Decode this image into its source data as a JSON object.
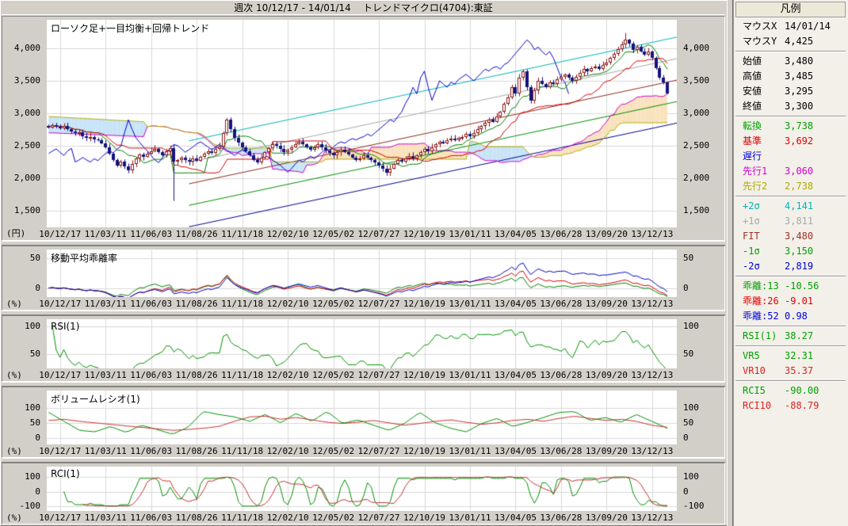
{
  "header": {
    "title": "週次 10/12/17 - 14/01/14    トレンドマイクロ(4704):東証"
  },
  "colors": {
    "grid": "#d8d8d8",
    "candle_up": "#8b1818",
    "candle_down": "#14147e",
    "tenkan": "#008000",
    "kijun": "#d40000",
    "chikou": "#0000cc",
    "senkou1": "#cc00cc",
    "senkou2": "#b2ae00",
    "cloud_bull": "#f9e2bd",
    "cloud_bear": "#c8e4f8",
    "sigma2p": "#00b4b4",
    "sigma1p": "#a8a8a8",
    "fit": "#8f2a20",
    "sigma1m": "#009000",
    "sigma2m": "#000090",
    "dev13": "#008000",
    "dev26": "#d40000",
    "dev52": "#0000cc",
    "rsi": "#009000",
    "vr5": "#009000",
    "vr10": "#c43030",
    "rci5": "#009000",
    "rci10": "#c43030",
    "legend_header_bg": "#ece9d8",
    "chrome": "#d4d0c8"
  },
  "x_axis": {
    "candles": 164,
    "total_weeks": 166,
    "tick_weeks": [
      3,
      15,
      27,
      39,
      51,
      63,
      75,
      87,
      99,
      111,
      123,
      135,
      147,
      159
    ],
    "labels": [
      "10/12/17",
      "11/03/11",
      "11/06/03",
      "11/08/26",
      "11/11/18",
      "12/02/10",
      "12/05/02",
      "12/07/27",
      "12/10/19",
      "13/01/11",
      "13/04/05",
      "13/06/28",
      "13/09/20",
      "13/12/13"
    ]
  },
  "chart_data": [
    {
      "type": "candlestick",
      "panel": "main",
      "title": "ローソク足+一目均衡+回帰トレンド",
      "unit": "(円)",
      "y_ticks": [
        4000,
        3500,
        3000,
        2500,
        2000,
        1500
      ],
      "ylim": [
        1243,
        4440
      ],
      "close": [
        2780,
        2820,
        2790,
        2770,
        2800,
        2760,
        2720,
        2690,
        2710,
        2650,
        2620,
        2640,
        2600,
        2580,
        2540,
        2480,
        2380,
        2280,
        2200,
        2250,
        2180,
        2120,
        2220,
        2300,
        2360,
        2330,
        2380,
        2420,
        2450,
        2400,
        2350,
        2420,
        2460,
        2250,
        2280,
        2320,
        2280,
        2250,
        2300,
        2270,
        2330,
        2380,
        2420,
        2390,
        2450,
        2490,
        2700,
        2900,
        2750,
        2620,
        2550,
        2480,
        2420,
        2350,
        2280,
        2240,
        2320,
        2400,
        2460,
        2520,
        2500,
        2450,
        2400,
        2440,
        2480,
        2530,
        2560,
        2520,
        2480,
        2440,
        2480,
        2520,
        2470,
        2430,
        2390,
        2350,
        2400,
        2440,
        2400,
        2360,
        2320,
        2280,
        2310,
        2350,
        2320,
        2280,
        2240,
        2200,
        2150,
        2090,
        2150,
        2220,
        2280,
        2250,
        2300,
        2340,
        2300,
        2350,
        2400,
        2450,
        2420,
        2480,
        2530,
        2560,
        2540,
        2580,
        2610,
        2590,
        2620,
        2640,
        2680,
        2650,
        2700,
        2750,
        2800,
        2850,
        2900,
        2870,
        2950,
        3020,
        3150,
        3250,
        3400,
        3300,
        3550,
        3650,
        3400,
        3200,
        3350,
        3500,
        3450,
        3400,
        3480,
        3450,
        3520,
        3560,
        3600,
        3550,
        3500,
        3560,
        3620,
        3680,
        3650,
        3700,
        3720,
        3680,
        3750,
        3780,
        3850,
        3920,
        3990,
        4060,
        4130,
        4080,
        3980,
        4020,
        3950,
        3900,
        3950,
        3850,
        3700,
        3550,
        3480,
        3300
      ],
      "high_overrides": {
        "152": 4235,
        "163": 3485
      },
      "low_overrides": {
        "33": 1650,
        "163": 3295
      },
      "last_week_ohlc": {
        "open": 3480,
        "high": 3485,
        "low": 3295,
        "close": 3300
      },
      "senkou_prefix": {
        "spanA": [
          2700,
          2640
        ],
        "spanB": [
          2950,
          2870
        ]
      },
      "ichimoku_windows": {
        "tenkan": 9,
        "kijun": 26,
        "senkou_b": 52,
        "shift": 26
      },
      "regression": {
        "w0": 37,
        "v0": 1914,
        "w1": 163,
        "v1": 3480,
        "sigma": 331,
        "levels": [
          {
            "mult": 2,
            "color": "sigma2p"
          },
          {
            "mult": 1,
            "color": "sigma1p"
          },
          {
            "mult": 0,
            "color": "fit"
          },
          {
            "mult": -1,
            "color": "sigma1m"
          },
          {
            "mult": -2,
            "color": "sigma2m"
          }
        ]
      }
    },
    {
      "type": "line",
      "panel": "deviation",
      "title": "移動平均乖離率",
      "unit": "(%)",
      "y_ticks": [
        50,
        0
      ],
      "ylim": [
        -15,
        64
      ],
      "windows": [
        13,
        26,
        52
      ],
      "series_colors": [
        "dev13",
        "dev26",
        "dev52"
      ],
      "end_values": [
        -10.56,
        -9.01,
        0.98
      ]
    },
    {
      "type": "line",
      "panel": "rsi",
      "title": "RSI(1)",
      "unit": "(%)",
      "y_ticks": [
        100,
        50
      ],
      "ylim": [
        25,
        112
      ],
      "window": 13,
      "color_key": "rsi",
      "end_value": 38.27
    },
    {
      "type": "line",
      "panel": "volume_ratio",
      "title": "ボリュームレシオ(1)",
      "unit": "(%)",
      "y_ticks": [
        100,
        50,
        0
      ],
      "ylim": [
        -22,
        158
      ],
      "series": [
        {
          "name": "VR5",
          "color_key": "vr5",
          "end_value": 32.31,
          "values": [
            85,
            55,
            25,
            20,
            38,
            18,
            42,
            28,
            12,
            35,
            88,
            78,
            70,
            55,
            78,
            50,
            82,
            55,
            88,
            48,
            60,
            42,
            25,
            48,
            85,
            50,
            32,
            20,
            48,
            65,
            38,
            52,
            68,
            85,
            88,
            58,
            68,
            52,
            78,
            55,
            32
          ]
        },
        {
          "name": "VR10",
          "color_key": "vr10",
          "end_value": 35.37,
          "values": [
            58,
            62,
            55,
            50,
            45,
            40,
            35,
            30,
            25,
            28,
            32,
            38,
            55,
            70,
            72,
            62,
            68,
            60,
            52,
            48,
            52,
            58,
            50,
            42,
            48,
            55,
            60,
            52,
            45,
            50,
            58,
            62,
            55,
            65,
            72,
            65,
            58,
            62,
            55,
            42,
            35
          ]
        }
      ]
    },
    {
      "type": "line",
      "panel": "rci",
      "title": "RCI(1)",
      "unit": "(%)",
      "y_ticks": [
        100,
        0,
        -100
      ],
      "ylim": [
        -133,
        171
      ],
      "series": [
        {
          "name": "RCI5",
          "window": 5,
          "color_key": "rci5",
          "end_value": -90.0
        },
        {
          "name": "RCI10",
          "window": 10,
          "color_key": "rci10",
          "end_value": -88.79
        }
      ]
    }
  ],
  "legend": {
    "header": "凡例",
    "groups": [
      {
        "rows": [
          {
            "label": "マウスX",
            "value": "14/01/14",
            "color": "#000000"
          },
          {
            "label": "マウスY",
            "value": "4,425",
            "color": "#000000"
          }
        ]
      },
      {
        "rows": [
          {
            "label": "始値",
            "value": "3,480",
            "color": "#000000"
          },
          {
            "label": "高値",
            "value": "3,485",
            "color": "#000000"
          },
          {
            "label": "安値",
            "value": "3,295",
            "color": "#000000"
          },
          {
            "label": "終値",
            "value": "3,300",
            "color": "#000000"
          }
        ]
      },
      {
        "rows": [
          {
            "label": "転換",
            "value": "3,738",
            "color": "#00a000"
          },
          {
            "label": "基準",
            "value": "3,692",
            "color": "#e00000"
          },
          {
            "label": "遅行",
            "value": "",
            "color": "#0000e0"
          },
          {
            "label": "先行1",
            "value": "3,060",
            "color": "#d000d0"
          },
          {
            "label": "先行2",
            "value": "2,738",
            "color": "#b0a800"
          }
        ]
      },
      {
        "rows": [
          {
            "label": "+2σ",
            "value": "4,141",
            "color": "#00b4b4"
          },
          {
            "label": "+1σ",
            "value": "3,811",
            "color": "#a8a8a8"
          },
          {
            "label": "FIT",
            "value": "3,480",
            "color": "#a03028"
          },
          {
            "label": "-1σ",
            "value": "3,150",
            "color": "#00a000"
          },
          {
            "label": "-2σ",
            "value": "2,819",
            "color": "#0000d0"
          }
        ]
      },
      {
        "rows": [
          {
            "label": "乖離:13",
            "value": "-10.56",
            "color": "#00a000"
          },
          {
            "label": "乖離:26",
            "value": "-9.01",
            "color": "#e00000"
          },
          {
            "label": "乖離:52",
            "value": "0.98",
            "color": "#0000e0"
          }
        ]
      },
      {
        "rows": [
          {
            "label": "RSI(1)",
            "value": "38.27",
            "color": "#00a000"
          }
        ]
      },
      {
        "rows": [
          {
            "label": "VR5",
            "value": "32.31",
            "color": "#00a000"
          },
          {
            "label": "VR10",
            "value": "35.37",
            "color": "#e02020"
          }
        ]
      },
      {
        "rows": [
          {
            "label": "RCI5",
            "value": "-90.00",
            "color": "#00a000"
          },
          {
            "label": "RCI10",
            "value": "-88.79",
            "color": "#e02020"
          }
        ]
      }
    ]
  }
}
